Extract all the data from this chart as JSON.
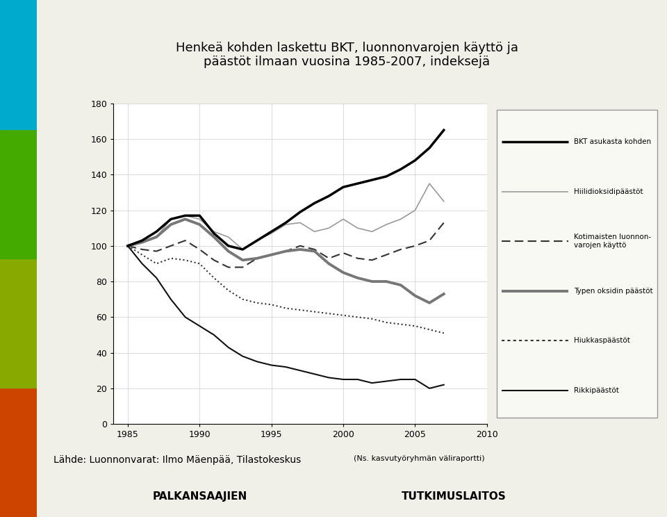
{
  "title": "Henkeä kohden laskettu BKT, luonnonvarojen käyttö ja\npäästöt ilmaan vuosina 1985-2007, indeksejä",
  "footnote": "Lähde: Luonnonvarat: Ilmo Mäenpää, Tilastokeskus",
  "footnote2": "(Ns. kasvutyöryhmän väliraportti)",
  "logo_text1": "PALKANSAAJIEN",
  "logo_text2": "TUTKIMUSLAITOS",
  "years": [
    1985,
    1986,
    1987,
    1988,
    1989,
    1990,
    1991,
    1992,
    1993,
    1994,
    1995,
    1996,
    1997,
    1998,
    1999,
    2000,
    2001,
    2002,
    2003,
    2004,
    2005,
    2006,
    2007
  ],
  "bkt": [
    100,
    103,
    108,
    115,
    117,
    117,
    107,
    100,
    98,
    103,
    108,
    113,
    119,
    124,
    128,
    133,
    135,
    137,
    139,
    143,
    148,
    155,
    165
  ],
  "co2": [
    100,
    102,
    105,
    115,
    117,
    115,
    108,
    105,
    98,
    103,
    107,
    112,
    113,
    108,
    110,
    115,
    110,
    108,
    112,
    115,
    120,
    135,
    125
  ],
  "luonnonvarat": [
    100,
    98,
    97,
    100,
    103,
    98,
    92,
    88,
    88,
    93,
    95,
    97,
    100,
    98,
    93,
    96,
    93,
    92,
    95,
    98,
    100,
    103,
    113
  ],
  "nox": [
    100,
    102,
    105,
    112,
    115,
    112,
    105,
    97,
    92,
    93,
    95,
    97,
    98,
    97,
    90,
    85,
    82,
    80,
    80,
    78,
    72,
    68,
    73
  ],
  "hiukkas": [
    100,
    95,
    90,
    93,
    92,
    90,
    82,
    75,
    70,
    68,
    67,
    65,
    64,
    63,
    62,
    61,
    60,
    59,
    57,
    56,
    55,
    53,
    51
  ],
  "rikki": [
    100,
    90,
    82,
    70,
    60,
    55,
    50,
    43,
    38,
    35,
    33,
    32,
    30,
    28,
    26,
    25,
    25,
    23,
    24,
    25,
    25,
    20,
    22
  ],
  "bg_color": "#f0f0e8",
  "chart_bg": "#ffffff",
  "sidebar_colors": [
    "#cc4400",
    "#88aa00",
    "#44aa00",
    "#00aacc"
  ],
  "ylim": [
    0,
    180
  ],
  "yticks": [
    0,
    20,
    40,
    60,
    80,
    100,
    120,
    140,
    160,
    180
  ],
  "xticks": [
    1985,
    1990,
    1995,
    2000,
    2005,
    2010
  ]
}
